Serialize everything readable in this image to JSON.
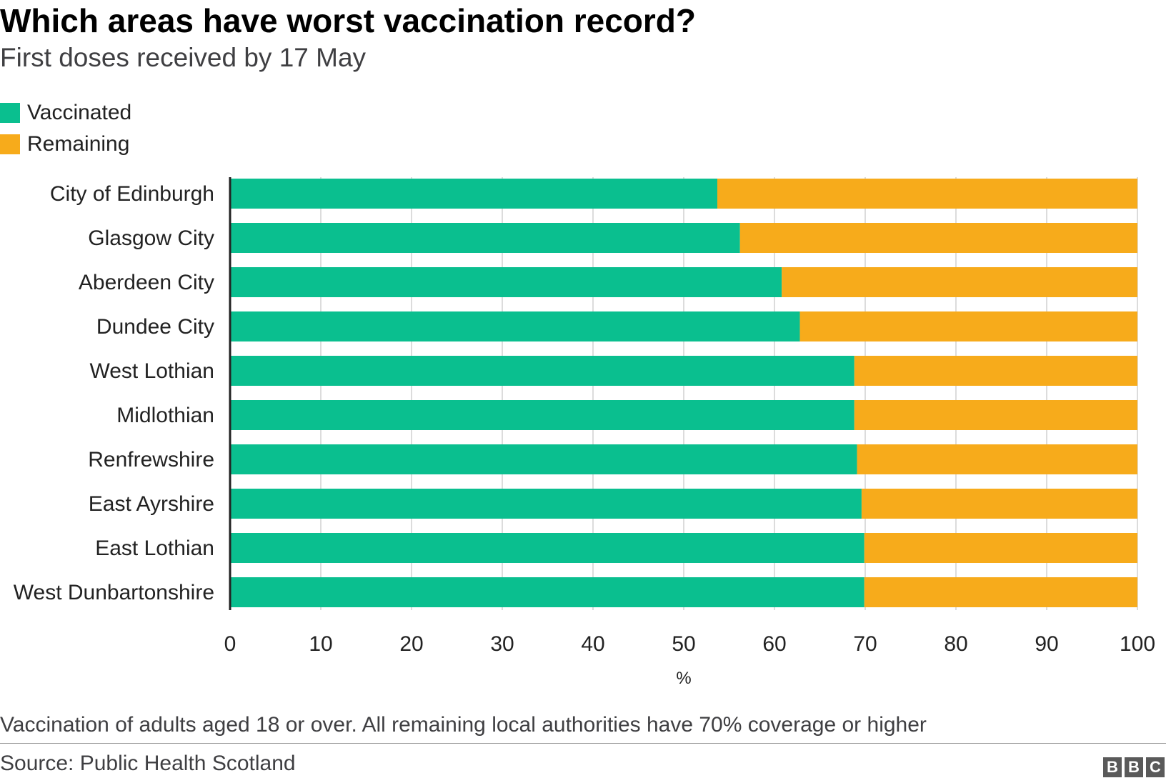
{
  "header": {
    "title": "Which areas have worst vaccination record?",
    "subtitle": "First doses received by 17 May"
  },
  "legend": {
    "items": [
      {
        "label": "Vaccinated",
        "color": "#0abf8f"
      },
      {
        "label": "Remaining",
        "color": "#f7ab1b"
      }
    ]
  },
  "chart_data": {
    "type": "bar",
    "orientation": "horizontal",
    "stacked": true,
    "title": "Which areas have worst vaccination record?",
    "subtitle": "First doses received by 17 May",
    "categories": [
      "City of Edinburgh",
      "Glasgow City",
      "Aberdeen City",
      "Dundee City",
      "West Lothian",
      "Midlothian",
      "Renfrewshire",
      "East Ayrshire",
      "East Lothian",
      "West Dunbartonshire"
    ],
    "series": [
      {
        "name": "Vaccinated",
        "color": "#0abf8f",
        "values": [
          53.7,
          56.2,
          60.8,
          62.8,
          68.8,
          68.8,
          69.1,
          69.6,
          69.9,
          69.9
        ]
      },
      {
        "name": "Remaining",
        "color": "#f7ab1b",
        "values": [
          46.3,
          43.8,
          39.2,
          37.2,
          31.2,
          31.2,
          30.9,
          30.4,
          30.1,
          30.1
        ]
      }
    ],
    "xlabel": "%",
    "ylabel": "",
    "xlim": [
      0,
      100
    ],
    "xticks": [
      0,
      10,
      20,
      30,
      40,
      50,
      60,
      70,
      80,
      90,
      100
    ],
    "grid": true,
    "legend_position": "top-left"
  },
  "footer": {
    "note": "Vaccination of adults aged 18 or over. All remaining local authorities have 70% coverage or higher",
    "source": "Source: Public Health Scotland",
    "logo_letters": [
      "B",
      "B",
      "C"
    ]
  }
}
